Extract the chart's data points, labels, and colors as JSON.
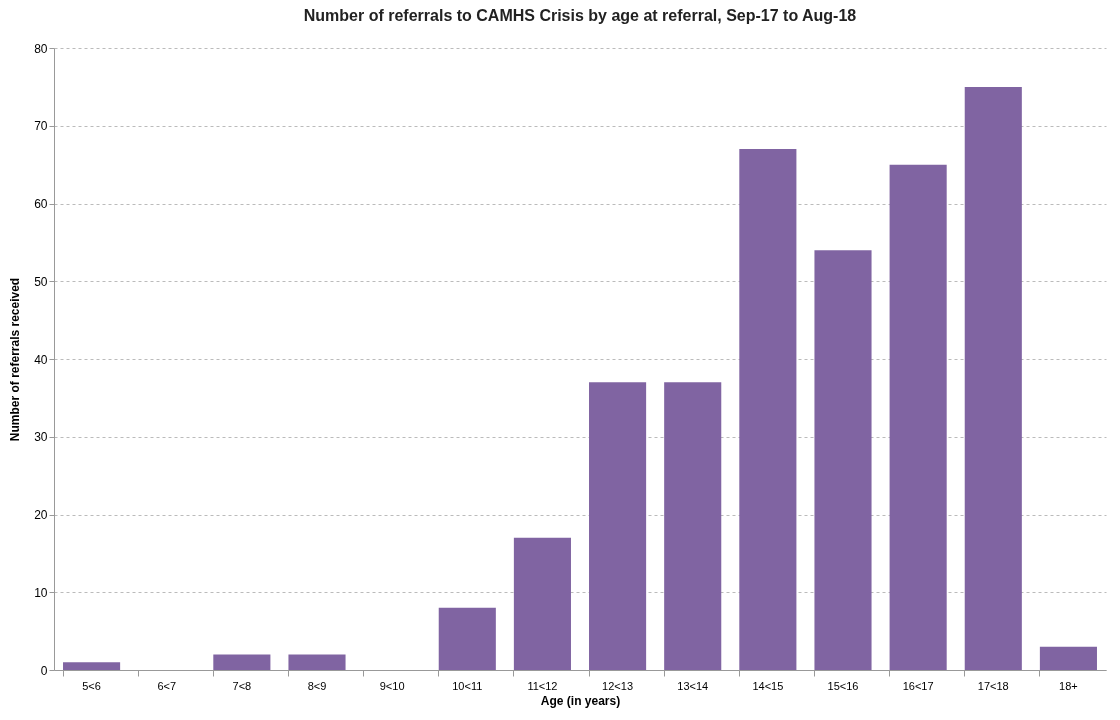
{
  "chart_data": {
    "type": "bar",
    "title": "Number of referrals to CAMHS Crisis by age at referral, Sep-17 to Aug-18",
    "xlabel": "Age (in years)",
    "ylabel": "Number of referrals received",
    "categories": [
      "5<6",
      "6<7",
      "7<8",
      "8<9",
      "9<10",
      "10<11",
      "11<12",
      "12<13",
      "13<14",
      "14<15",
      "15<16",
      "16<17",
      "17<18",
      "18+"
    ],
    "values": [
      1,
      0,
      2,
      2,
      0,
      8,
      17,
      37,
      37,
      67,
      54,
      65,
      75,
      3
    ],
    "color": "#8064a2",
    "ylim": [
      0,
      80
    ],
    "yticks": [
      0,
      10,
      20,
      30,
      40,
      50,
      60,
      70,
      80
    ],
    "grid": "y"
  }
}
